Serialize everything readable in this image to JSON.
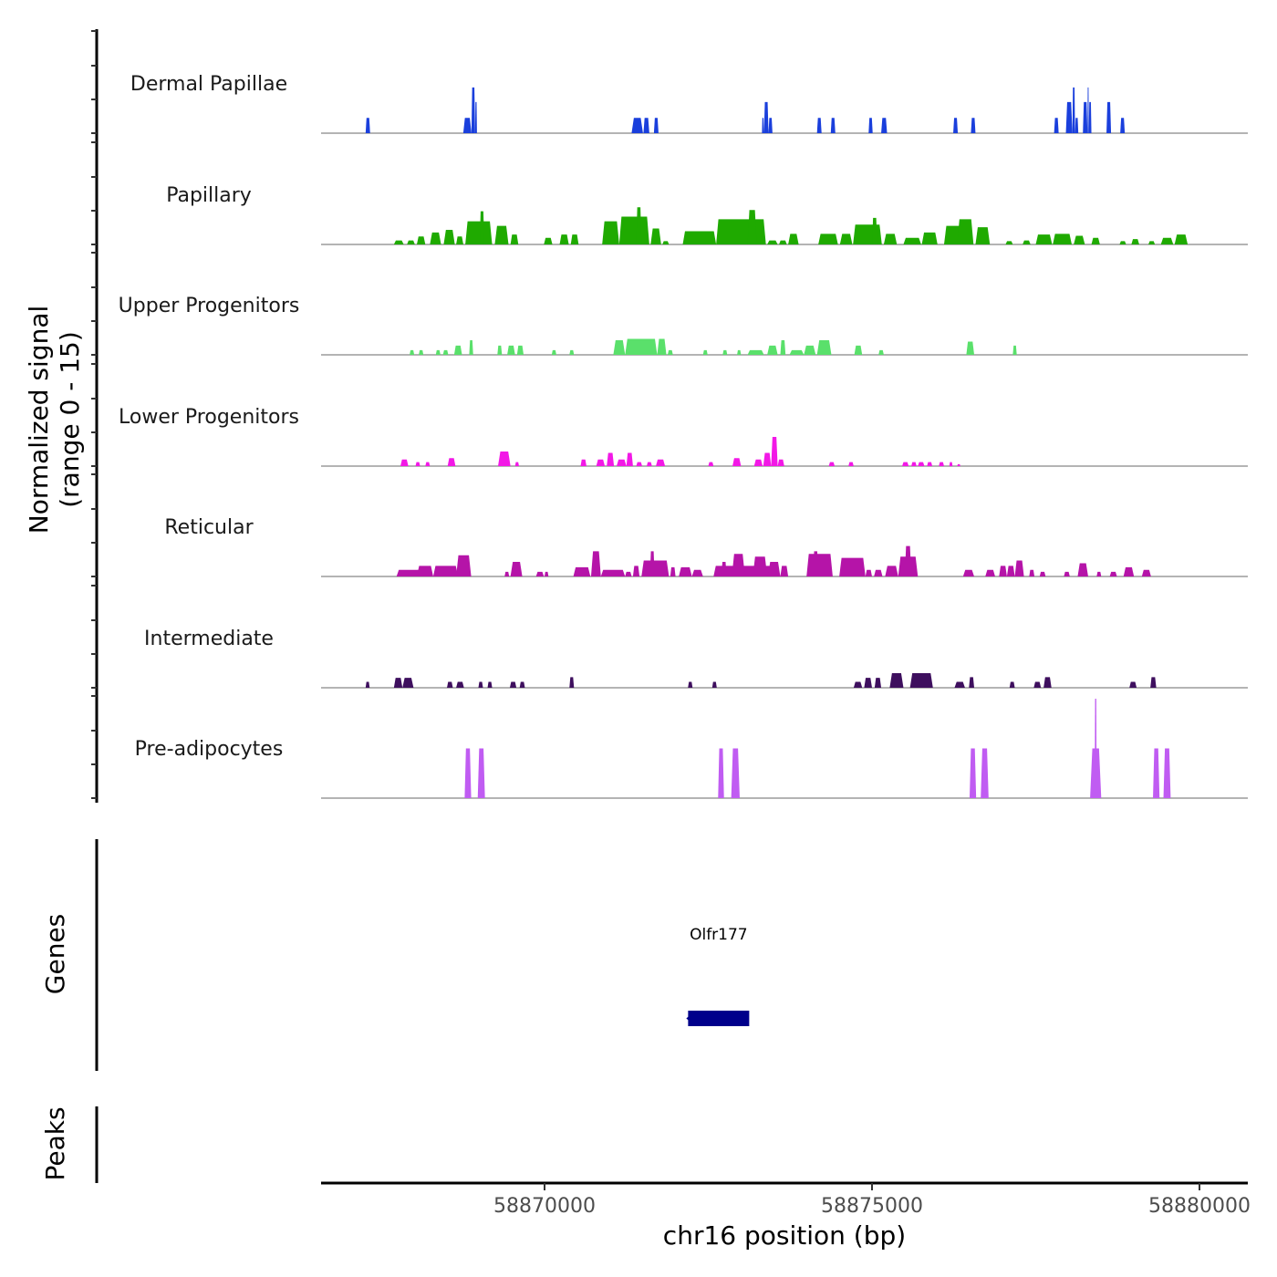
{
  "chart_data": {
    "type": "area",
    "title": "",
    "xlabel": "chr16 position (bp)",
    "ylabel": "Normalized signal\n(range 0 - 15)",
    "ylabel_lines": [
      "Normalized signal",
      "(range 0 - 15)"
    ],
    "ylim": [
      0,
      15
    ],
    "xlim": [
      58866588,
      58880738
    ],
    "x_ticks": [
      58870000,
      58875000,
      58880000
    ],
    "x_tick_labels": [
      "58870000",
      "58875000",
      "58880000"
    ],
    "grid": false,
    "legend": "none",
    "tracks": [
      {
        "name": "Dermal Papillae",
        "color": "#1a3fdc",
        "peaks": [
          [
            58867268,
            58867337,
            2.3
          ],
          [
            58868759,
            58868884,
            2.3
          ],
          [
            58868884,
            58868940,
            6.9
          ],
          [
            58868940,
            58868968,
            4.7
          ],
          [
            58871329,
            58871503,
            2.3
          ],
          [
            58871510,
            58871600,
            2.3
          ],
          [
            58871670,
            58871740,
            2.3
          ],
          [
            58873320,
            58873350,
            2.3
          ],
          [
            58873350,
            58873420,
            4.7
          ],
          [
            58873420,
            58873480,
            2.3
          ],
          [
            58874160,
            58874230,
            2.3
          ],
          [
            58874370,
            58874440,
            2.3
          ],
          [
            58874948,
            58875010,
            2.3
          ],
          [
            58875140,
            58875230,
            2.3
          ],
          [
            58876240,
            58876310,
            2.3
          ],
          [
            58876510,
            58876580,
            2.3
          ],
          [
            58877780,
            58877850,
            2.3
          ],
          [
            58877960,
            58878060,
            4.7
          ],
          [
            58878060,
            58878100,
            6.9
          ],
          [
            58878100,
            58878150,
            2.3
          ],
          [
            58878220,
            58878290,
            4.7
          ],
          [
            58878290,
            58878310,
            6.9
          ],
          [
            58878310,
            58878350,
            4.7
          ],
          [
            58878580,
            58878650,
            4.7
          ],
          [
            58878790,
            58878860,
            2.3
          ]
        ]
      },
      {
        "name": "Papillary",
        "color": "#1faa00",
        "peaks": [
          [
            58867700,
            58867850,
            0.6
          ],
          [
            58867900,
            58868020,
            0.6
          ],
          [
            58868050,
            58868180,
            1.2
          ],
          [
            58868250,
            58868420,
            1.8
          ],
          [
            58868460,
            58868630,
            2.2
          ],
          [
            58868650,
            58868760,
            1.2
          ],
          [
            58868790,
            58869200,
            3.5
          ],
          [
            58869010,
            58869080,
            5.0
          ],
          [
            58869240,
            58869450,
            2.8
          ],
          [
            58869480,
            58869600,
            1.5
          ],
          [
            58869990,
            58870120,
            1.0
          ],
          [
            58870230,
            58870370,
            1.5
          ],
          [
            58870400,
            58870520,
            1.5
          ],
          [
            58870880,
            58871140,
            3.5
          ],
          [
            58871140,
            58871600,
            4.2
          ],
          [
            58871400,
            58871480,
            5.6
          ],
          [
            58871620,
            58871780,
            2.4
          ],
          [
            58871800,
            58871900,
            0.5
          ],
          [
            58872110,
            58872620,
            2.0
          ],
          [
            58872620,
            58873380,
            3.8
          ],
          [
            58873100,
            58873240,
            5.2
          ],
          [
            58873400,
            58873560,
            0.6
          ],
          [
            58873580,
            58873700,
            0.6
          ],
          [
            58873720,
            58873880,
            1.6
          ],
          [
            58874180,
            58874480,
            1.6
          ],
          [
            58874510,
            58874700,
            1.6
          ],
          [
            58874710,
            58875150,
            3.0
          ],
          [
            58875000,
            58875080,
            4.0
          ],
          [
            58875180,
            58875380,
            1.6
          ],
          [
            58875480,
            58875750,
            1.0
          ],
          [
            58875760,
            58876000,
            1.8
          ],
          [
            58876100,
            58876450,
            2.8
          ],
          [
            58876300,
            58876550,
            3.8
          ],
          [
            58876580,
            58876800,
            2.6
          ],
          [
            58877040,
            58877150,
            0.5
          ],
          [
            58877300,
            58877420,
            0.6
          ],
          [
            58877500,
            58877750,
            1.5
          ],
          [
            58877760,
            58878050,
            1.6
          ],
          [
            58878080,
            58878250,
            1.3
          ],
          [
            58878350,
            58878480,
            1.0
          ],
          [
            58878780,
            58878880,
            0.5
          ],
          [
            58878960,
            58879080,
            0.8
          ],
          [
            58879220,
            58879320,
            0.5
          ],
          [
            58879410,
            58879600,
            1.0
          ],
          [
            58879620,
            58879820,
            1.5
          ]
        ]
      },
      {
        "name": "Upper Progenitors",
        "color": "#5ae06b",
        "peaks": [
          [
            58867940,
            58868010,
            0.7
          ],
          [
            58868080,
            58868150,
            0.7
          ],
          [
            58868340,
            58868410,
            0.7
          ],
          [
            58868450,
            58868530,
            0.7
          ],
          [
            58868620,
            58868740,
            1.4
          ],
          [
            58868850,
            58868910,
            2.2
          ],
          [
            58869280,
            58869350,
            1.4
          ],
          [
            58869430,
            58869550,
            1.4
          ],
          [
            58869580,
            58869680,
            1.4
          ],
          [
            58870110,
            58870180,
            0.7
          ],
          [
            58870380,
            58870450,
            0.7
          ],
          [
            58871050,
            58871230,
            2.2
          ],
          [
            58871230,
            58871720,
            2.4
          ],
          [
            58871720,
            58871860,
            2.4
          ],
          [
            58871880,
            58871960,
            0.7
          ],
          [
            58872420,
            58872490,
            0.7
          ],
          [
            58872720,
            58872790,
            0.7
          ],
          [
            58872940,
            58873000,
            0.7
          ],
          [
            58873100,
            58873350,
            0.7
          ],
          [
            58873400,
            58873560,
            1.4
          ],
          [
            58873600,
            58873680,
            2.2
          ],
          [
            58873740,
            58873960,
            0.7
          ],
          [
            58873960,
            58874140,
            1.4
          ],
          [
            58874160,
            58874380,
            2.2
          ],
          [
            58874730,
            58874850,
            1.4
          ],
          [
            58875100,
            58875180,
            0.7
          ],
          [
            58876440,
            58876560,
            2.0
          ],
          [
            58877150,
            58877210,
            1.4
          ]
        ]
      },
      {
        "name": "Lower Progenitors",
        "color": "#f218e6",
        "peaks": [
          [
            58867800,
            58867920,
            1.0
          ],
          [
            58868030,
            58868100,
            0.6
          ],
          [
            58868180,
            58868250,
            0.6
          ],
          [
            58868520,
            58868640,
            1.2
          ],
          [
            58869290,
            58869480,
            2.2
          ],
          [
            58869550,
            58869610,
            0.6
          ],
          [
            58870550,
            58870640,
            1.0
          ],
          [
            58870790,
            58870920,
            1.0
          ],
          [
            58870950,
            58871060,
            2.0
          ],
          [
            58871100,
            58871250,
            1.0
          ],
          [
            58871250,
            58871350,
            2.0
          ],
          [
            58871400,
            58871490,
            0.6
          ],
          [
            58871560,
            58871640,
            0.6
          ],
          [
            58871700,
            58871840,
            1.0
          ],
          [
            58872500,
            58872580,
            0.6
          ],
          [
            58872870,
            58873000,
            1.2
          ],
          [
            58873200,
            58873330,
            1.0
          ],
          [
            58873340,
            58873460,
            2.0
          ],
          [
            58873460,
            58873560,
            4.4
          ],
          [
            58873560,
            58873660,
            1.0
          ],
          [
            58874340,
            58874430,
            0.6
          ],
          [
            58874640,
            58874720,
            0.6
          ],
          [
            58875460,
            58875560,
            0.6
          ],
          [
            58875600,
            58875680,
            0.6
          ],
          [
            58875700,
            58875800,
            0.6
          ],
          [
            58875840,
            58875920,
            0.6
          ],
          [
            58876020,
            58876100,
            0.6
          ],
          [
            58876180,
            58876230,
            0.6
          ],
          [
            58876300,
            58876350,
            0.3
          ]
        ]
      },
      {
        "name": "Reticular",
        "color": "#b514a8",
        "peaks": [
          [
            58867740,
            58868140,
            1.0
          ],
          [
            58868050,
            58868300,
            1.6
          ],
          [
            58868300,
            58868680,
            1.6
          ],
          [
            58868650,
            58868880,
            3.2
          ],
          [
            58869390,
            58869460,
            0.7
          ],
          [
            58869480,
            58869660,
            2.2
          ],
          [
            58869870,
            58869990,
            0.7
          ],
          [
            58870000,
            58870060,
            0.7
          ],
          [
            58870440,
            58870700,
            1.4
          ],
          [
            58870710,
            58870860,
            3.8
          ],
          [
            58870860,
            58871230,
            1.0
          ],
          [
            58871230,
            58871330,
            0.7
          ],
          [
            58871350,
            58871450,
            1.6
          ],
          [
            58871480,
            58871900,
            2.4
          ],
          [
            58871610,
            58871680,
            3.8
          ],
          [
            58871750,
            58871850,
            1.4
          ],
          [
            58871920,
            58872000,
            1.4
          ],
          [
            58872050,
            58872250,
            1.4
          ],
          [
            58872250,
            58872420,
            1.0
          ],
          [
            58872580,
            58873470,
            1.6
          ],
          [
            58872700,
            58872780,
            2.2
          ],
          [
            58872860,
            58873060,
            3.4
          ],
          [
            58873180,
            58873400,
            3.0
          ],
          [
            58873410,
            58873600,
            2.2
          ],
          [
            58873600,
            58873720,
            1.6
          ],
          [
            58874000,
            58874400,
            3.4
          ],
          [
            58874100,
            58874180,
            3.8
          ],
          [
            58874500,
            58874900,
            2.8
          ],
          [
            58874900,
            58875000,
            1.0
          ],
          [
            58875030,
            58875160,
            1.0
          ],
          [
            58875200,
            58875400,
            1.6
          ],
          [
            58875500,
            58875600,
            4.6
          ],
          [
            58875400,
            58875700,
            3.0
          ],
          [
            58876390,
            58876560,
            1.0
          ],
          [
            58876730,
            58876880,
            1.0
          ],
          [
            58876940,
            58877060,
            1.6
          ],
          [
            58877060,
            58877180,
            1.6
          ],
          [
            58877180,
            58877320,
            2.4
          ],
          [
            58877400,
            58877480,
            1.0
          ],
          [
            58877560,
            58877650,
            0.7
          ],
          [
            58877930,
            58878020,
            0.7
          ],
          [
            58878140,
            58878300,
            2.0
          ],
          [
            58878430,
            58878500,
            0.7
          ],
          [
            58878630,
            58878740,
            0.7
          ],
          [
            58878840,
            58879000,
            1.4
          ],
          [
            58879120,
            58879260,
            1.0
          ]
        ]
      },
      {
        "name": "Intermediate",
        "color": "#3e0f5e",
        "peaks": [
          [
            58867268,
            58867330,
            0.9
          ],
          [
            58867700,
            58867830,
            1.5
          ],
          [
            58867830,
            58868000,
            1.5
          ],
          [
            58868510,
            58868600,
            0.9
          ],
          [
            58868650,
            58868770,
            0.9
          ],
          [
            58868990,
            58869060,
            0.9
          ],
          [
            58869130,
            58869200,
            0.9
          ],
          [
            58869470,
            58869570,
            0.9
          ],
          [
            58869620,
            58869700,
            0.9
          ],
          [
            58870380,
            58870450,
            1.6
          ],
          [
            58872190,
            58872260,
            0.9
          ],
          [
            58872560,
            58872630,
            0.9
          ],
          [
            58874720,
            58874850,
            0.9
          ],
          [
            58874880,
            58875000,
            1.5
          ],
          [
            58875040,
            58875140,
            1.5
          ],
          [
            58875270,
            58875480,
            2.2
          ],
          [
            58875580,
            58875930,
            2.2
          ],
          [
            58876260,
            58876420,
            0.9
          ],
          [
            58876480,
            58876560,
            1.6
          ],
          [
            58877100,
            58877180,
            0.9
          ],
          [
            58877470,
            58877580,
            0.9
          ],
          [
            58877620,
            58877740,
            1.6
          ],
          [
            58878930,
            58879040,
            0.9
          ],
          [
            58879250,
            58879340,
            1.6
          ]
        ]
      },
      {
        "name": "Pre-adipocytes",
        "color": "#c05cf2",
        "peaks": [
          [
            58868780,
            58868880,
            7.5
          ],
          [
            58868980,
            58869090,
            7.5
          ],
          [
            58872650,
            58872740,
            7.5
          ],
          [
            58872850,
            58872980,
            7.5
          ],
          [
            58876490,
            58876590,
            7.5
          ],
          [
            58876660,
            58876780,
            7.5
          ],
          [
            58878330,
            58878500,
            7.5
          ],
          [
            58878400,
            58878430,
            15
          ],
          [
            58879290,
            58879390,
            7.5
          ],
          [
            58879450,
            58879560,
            7.5
          ]
        ]
      }
    ],
    "genes": {
      "label": "Genes",
      "items": [
        {
          "name": "Olfr177",
          "start": 58872192,
          "end": 58873125,
          "strand": "-",
          "color": "#00008b"
        }
      ]
    },
    "peaks_track": {
      "label": "Peaks",
      "items": []
    }
  }
}
